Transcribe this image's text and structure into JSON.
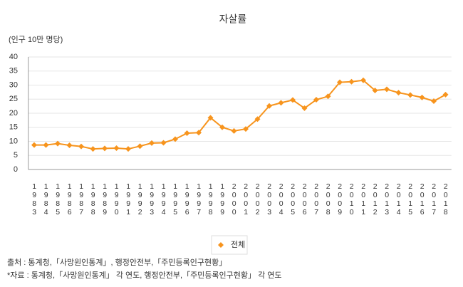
{
  "chart_data": {
    "type": "line",
    "title": "자살률",
    "y_label": "(인구 10만 명당)",
    "categories": [
      "1983",
      "1984",
      "1985",
      "1986",
      "1987",
      "1988",
      "1989",
      "1990",
      "1991",
      "1992",
      "1993",
      "1994",
      "1995",
      "1996",
      "1997",
      "1998",
      "1999",
      "2000",
      "2001",
      "2002",
      "2003",
      "2004",
      "2005",
      "2006",
      "2007",
      "2008",
      "2009",
      "2010",
      "2011",
      "2012",
      "2013",
      "2014",
      "2015",
      "2016",
      "2017",
      "2018"
    ],
    "series": [
      {
        "name": "전체",
        "color": "#f7941d",
        "values": [
          8.7,
          8.7,
          9.2,
          8.6,
          8.2,
          7.3,
          7.5,
          7.6,
          7.3,
          8.3,
          9.4,
          9.5,
          10.8,
          12.9,
          13.1,
          18.4,
          15.0,
          13.7,
          14.4,
          17.9,
          22.6,
          23.7,
          24.7,
          21.8,
          24.8,
          26.0,
          31.0,
          31.2,
          31.7,
          28.1,
          28.5,
          27.3,
          26.5,
          25.6,
          24.3,
          26.6
        ]
      }
    ],
    "ylim": [
      0,
      40
    ],
    "yticks": [
      0,
      5,
      10,
      15,
      20,
      25,
      30,
      35,
      40
    ],
    "grid": true
  },
  "footnotes": [
    "출처 : 통계청,「사망원인통계」, 행정안전부,「주민등록인구현황」",
    "*자료 : 통계청,「사망원인통계」 각 연도, 행정안전부,「주민등록인구현황」 각 연도"
  ]
}
